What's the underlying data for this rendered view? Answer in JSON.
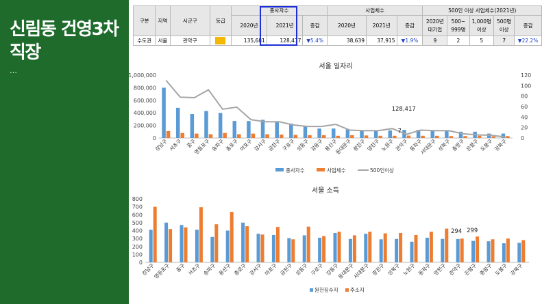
{
  "sidebar": {
    "title_line1": "신림동 건영3차",
    "title_line2": "직장",
    "dots": "…"
  },
  "table": {
    "group_headers": [
      "구분",
      "지역",
      "시군구",
      "등급",
      "종사자수",
      "사업체수",
      "500인 이상 사업체수(2021년)"
    ],
    "col_headers": [
      "2020년",
      "2021년",
      "증감",
      "2020년",
      "2021년",
      "증감",
      "2020년 대기업",
      "500~ 999명",
      "1,000명 이상",
      "500명 이상",
      "증감"
    ],
    "row": [
      "수도권",
      "서울",
      "관악구",
      "",
      "135,681",
      "128,417",
      "▼5.4%",
      "38,639",
      "37,915",
      "▼1.9%",
      "9",
      "2",
      "5",
      "7",
      "▼22.2%"
    ]
  },
  "chart_data": [
    {
      "type": "bar",
      "title": "서울 일자리",
      "categories": [
        "강남구",
        "서초구",
        "중구",
        "영등포구",
        "송파구",
        "종로구",
        "마포구",
        "강서구",
        "금천구",
        "구로구",
        "성동구",
        "강동구",
        "용산구",
        "동대문구",
        "광진구",
        "양천구",
        "노원구",
        "관악구",
        "동작구",
        "서대문구",
        "성북구",
        "중랑구",
        "은평구",
        "도봉구",
        "강북구"
      ],
      "series": [
        {
          "name": "종사자수",
          "axis": "left",
          "color": "#5b9bd5",
          "values": [
            800000,
            480000,
            380000,
            430000,
            400000,
            270000,
            270000,
            290000,
            250000,
            230000,
            190000,
            150000,
            150000,
            140000,
            120000,
            110000,
            120000,
            128417,
            130000,
            120000,
            110000,
            100000,
            100000,
            70000,
            70000
          ]
        },
        {
          "name": "사업체수",
          "axis": "left",
          "color": "#ed7d31",
          "values": [
            110000,
            80000,
            70000,
            60000,
            80000,
            60000,
            70000,
            60000,
            55000,
            50000,
            45000,
            45000,
            35000,
            45000,
            40000,
            35000,
            35000,
            37915,
            35000,
            35000,
            30000,
            30000,
            35000,
            25000,
            30000
          ]
        },
        {
          "name": "500인이상",
          "axis": "right",
          "color": "#a5a5a5",
          "values": [
            110,
            78,
            77,
            92,
            55,
            59,
            35,
            31,
            31,
            25,
            22,
            22,
            26,
            15,
            14,
            14,
            18,
            7,
            15,
            14,
            14,
            8,
            6,
            5,
            2
          ]
        }
      ],
      "ylim_left": [
        0,
        1000000
      ],
      "yticks_left": [
        "0",
        "200,000",
        "400,000",
        "600,000",
        "800,000",
        "1,000,000"
      ],
      "ylim_right": [
        0,
        120
      ],
      "yticks_right": [
        "0",
        "20",
        "40",
        "60",
        "80",
        "100",
        "120"
      ],
      "annotations": [
        "128,417",
        "7"
      ],
      "legend": "bottom"
    },
    {
      "type": "bar",
      "title": "서울 소득",
      "categories": [
        "강남구",
        "영등포구",
        "중구",
        "서초구",
        "송파구",
        "용산구",
        "종로구",
        "강서구",
        "마포구",
        "금천구",
        "성동구",
        "구로구",
        "강동구",
        "동대문구",
        "서대문구",
        "광진구",
        "성북구",
        "노원구",
        "동작구",
        "양천구",
        "관악구",
        "은평구",
        "중랑구",
        "도봉구",
        "강북구"
      ],
      "series": [
        {
          "name": "원천징수지",
          "color": "#5b9bd5",
          "values": [
            410,
            500,
            470,
            410,
            320,
            400,
            500,
            360,
            345,
            305,
            340,
            310,
            370,
            295,
            360,
            290,
            295,
            260,
            310,
            295,
            294,
            270,
            265,
            240,
            245
          ]
        },
        {
          "name": "주소지",
          "color": "#ed7d31",
          "values": [
            700,
            420,
            440,
            695,
            480,
            635,
            455,
            350,
            445,
            290,
            450,
            330,
            385,
            340,
            385,
            365,
            370,
            345,
            385,
            425,
            299,
            325,
            290,
            300,
            280
          ]
        }
      ],
      "ylim": [
        0,
        800
      ],
      "yticks": [
        "0",
        "100",
        "200",
        "300",
        "400",
        "500",
        "600",
        "700",
        "800"
      ],
      "annotations": [
        "294",
        "299"
      ],
      "legend": "bottom"
    }
  ]
}
